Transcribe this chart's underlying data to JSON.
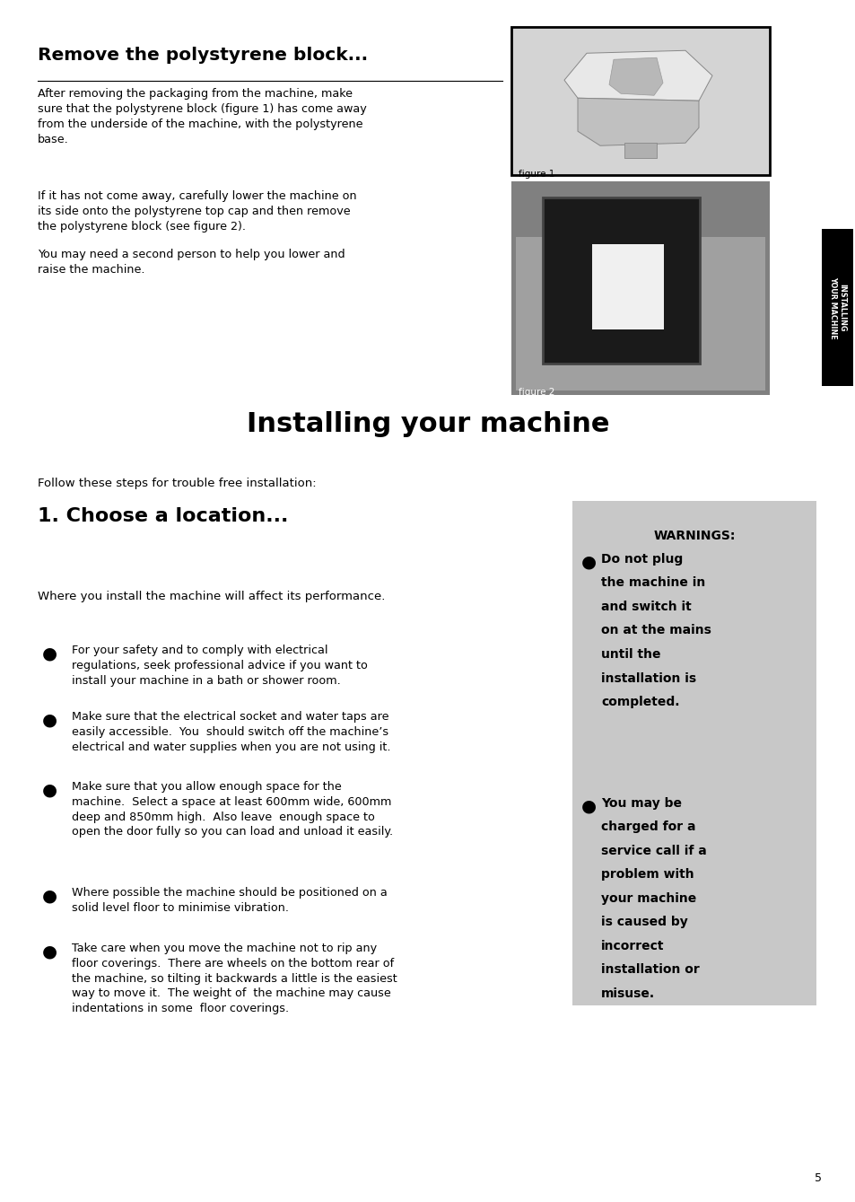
{
  "page_bg": "#ffffff",
  "page_width": 9.54,
  "page_height": 13.39,
  "section1_title": "Remove the polystyrene block...",
  "section1_para1": "After removing the packaging from the machine, make\nsure that the polystyrene block (figure 1) has come away\nfrom the underside of the machine, with the polystyrene\nbase.",
  "section1_para2": "If it has not come away, carefully lower the machine on\nits side onto the polystyrene top cap and then remove\nthe polystyrene block (see figure 2).",
  "section1_para3": "You may need a second person to help you lower and\nraise the machine.",
  "section2_title": "Installing your machine",
  "section2_intro": "Follow these steps for trouble free installation:",
  "section3_title": "1. Choose a location...",
  "section3_intro": "Where you install the machine will affect its performance.",
  "bullets": [
    "For your safety and to comply with electrical\nregulations, seek professional advice if you want to\ninstall your machine in a bath or shower room.",
    "Make sure that the electrical socket and water taps are\neasily accessible.  You  should switch off the machine’s\nelectrical and water supplies when you are not using it.",
    "Make sure that you allow enough space for the\nmachine.  Select a space at least 600mm wide, 600mm\ndeep and 850mm high.  Also leave  enough space to\nopen the door fully so you can load and unload it easily.",
    "Where possible the machine should be positioned on a\nsolid level floor to minimise vibration.",
    "Take care when you move the machine not to rip any\nfloor coverings.  There are wheels on the bottom rear of\nthe machine, so tilting it backwards a little is the easiest\nway to move it.  The weight of  the machine may cause\nindentations in some  floor coverings."
  ],
  "warning_box_bg": "#c8c8c8",
  "warning_title": "WARNINGS:",
  "w1_lines": [
    "Do not plug",
    "the machine in",
    "and switch it",
    "on at the mains",
    "until the",
    "installation is",
    "completed."
  ],
  "w2_lines": [
    "You may be",
    "charged for a",
    "service call if a",
    "problem with",
    "your machine",
    "is caused by",
    "incorrect",
    "installation or",
    "misuse."
  ],
  "sidebar_text": "INSTALLING\nYOUR MACHINE",
  "sidebar_bg": "#000000",
  "sidebar_text_color": "#ffffff",
  "page_number": "5",
  "fig1_label": "figure 1",
  "fig2_label": "figure 2",
  "fig1_bg": "#c8c8c8",
  "fig2_bg": "#909090"
}
